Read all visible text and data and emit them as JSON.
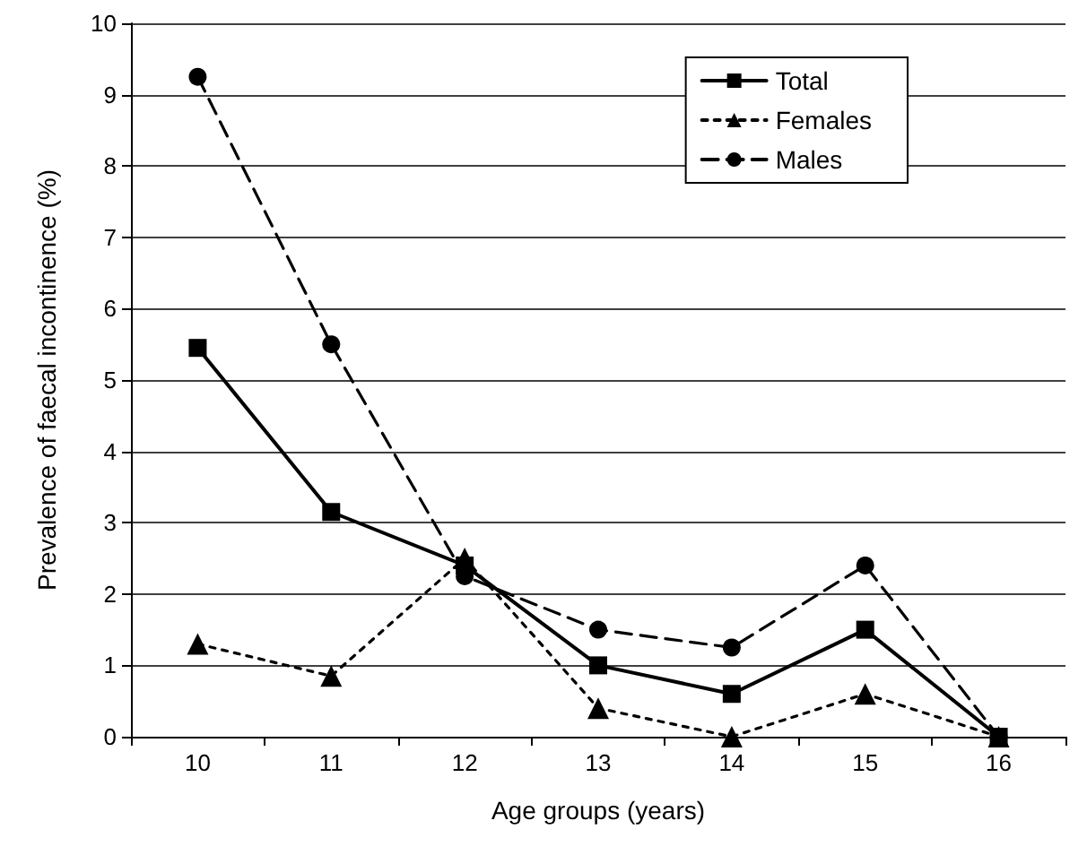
{
  "chart_data": {
    "type": "line",
    "xlabel": "Age groups (years)",
    "ylabel": "Prevalence of faecal incontinence (%)",
    "categories": [
      "10",
      "11",
      "12",
      "13",
      "14",
      "15",
      "16"
    ],
    "series": [
      {
        "name": "Total",
        "color": "#000000",
        "marker": "square",
        "line_style": "solid",
        "values": [
          5.45,
          3.15,
          2.4,
          1.0,
          0.6,
          1.5,
          0.0
        ]
      },
      {
        "name": "Females",
        "color": "#000000",
        "marker": "triangle",
        "line_style": "dotted",
        "values": [
          1.3,
          0.85,
          2.5,
          0.4,
          0.0,
          0.6,
          0.0
        ]
      },
      {
        "name": "Males",
        "color": "#000000",
        "marker": "circle",
        "line_style": "dashed",
        "values": [
          9.25,
          5.5,
          2.25,
          1.5,
          1.25,
          2.4,
          0.0
        ]
      }
    ],
    "ylim": [
      0,
      10
    ],
    "yticks": [
      0,
      1,
      2,
      3,
      4,
      5,
      6,
      7,
      8,
      9,
      10
    ],
    "grid": "y",
    "legend": "top right"
  }
}
